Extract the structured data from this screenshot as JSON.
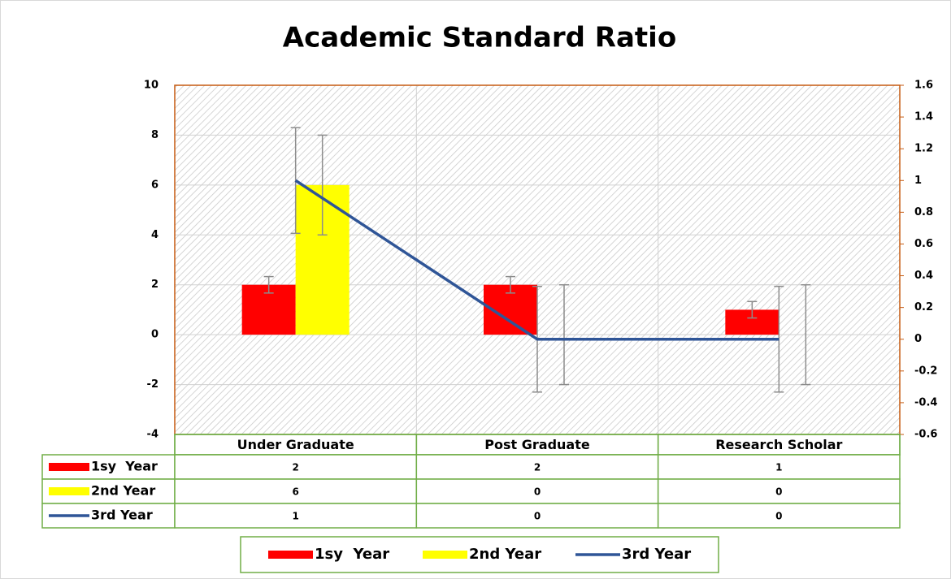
{
  "chart_data": {
    "type": "bar",
    "title": "Academic Standard Ratio",
    "categories": [
      "Under Graduate",
      "Post Graduate",
      "Research Scholar"
    ],
    "series": [
      {
        "name": "1sy  Year",
        "type": "bar",
        "color": "#ff0000",
        "values": [
          2,
          2,
          1
        ],
        "errors": [
          0.33,
          0.33,
          0.33
        ]
      },
      {
        "name": "2nd Year",
        "type": "bar",
        "color": "#ffff00",
        "values": [
          6,
          0,
          0
        ],
        "errors": [
          2,
          2,
          2
        ]
      },
      {
        "name": "3rd Year",
        "type": "line",
        "axis": "y2",
        "color": "#2f5597",
        "values": [
          1,
          0,
          0
        ],
        "errors": [
          0.333,
          0.333,
          0.333
        ]
      }
    ],
    "ylim": [
      -4,
      10
    ],
    "yticks": [
      -4,
      -2,
      0,
      2,
      4,
      6,
      8,
      10
    ],
    "y2lim": [
      -0.6,
      1.6
    ],
    "y2ticks": [
      -0.6,
      -0.4,
      -0.2,
      0,
      0.2,
      0.4,
      0.6,
      0.8,
      1,
      1.2,
      1.4,
      1.6
    ],
    "grid": true,
    "legend": "bottom",
    "data_table": true
  }
}
